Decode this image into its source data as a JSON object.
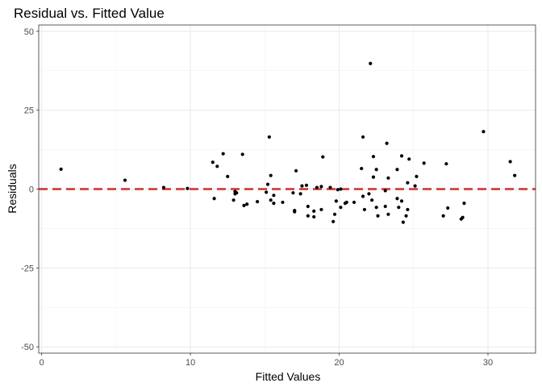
{
  "chart_data": {
    "type": "scatter",
    "title": "Residual vs. Fitted Value",
    "xlabel": "Fitted Values",
    "ylabel": "Residuals",
    "xlim": [
      -0.2,
      33.2
    ],
    "ylim": [
      -52,
      52
    ],
    "x_ticks": [
      0,
      10,
      20,
      30
    ],
    "x_tick_labels": [
      "0",
      "10",
      "20",
      "30"
    ],
    "y_ticks": [
      -50,
      -25,
      0,
      25,
      50
    ],
    "y_tick_labels": [
      "-50",
      "-25",
      "0",
      "25",
      "50"
    ],
    "grid": true,
    "point_color": "#000000",
    "reference_line": {
      "y": 0,
      "color": "#d04040",
      "style": "dashed"
    },
    "points": [
      [
        1.3,
        6.3
      ],
      [
        5.6,
        2.8
      ],
      [
        8.2,
        0.5
      ],
      [
        9.8,
        0.2
      ],
      [
        11.5,
        8.5
      ],
      [
        11.6,
        -3.0
      ],
      [
        11.8,
        7.2
      ],
      [
        12.2,
        11.2
      ],
      [
        12.5,
        4.0
      ],
      [
        12.9,
        -3.5
      ],
      [
        13.0,
        -1.5
      ],
      [
        13.0,
        -0.8
      ],
      [
        13.1,
        -1.2
      ],
      [
        13.5,
        11.0
      ],
      [
        13.6,
        -5.2
      ],
      [
        13.8,
        -4.8
      ],
      [
        14.5,
        -4.0
      ],
      [
        15.1,
        -1.0
      ],
      [
        15.2,
        1.5
      ],
      [
        15.3,
        16.5
      ],
      [
        15.4,
        -3.5
      ],
      [
        15.4,
        4.3
      ],
      [
        15.6,
        -2.0
      ],
      [
        15.6,
        -4.5
      ],
      [
        16.2,
        -4.2
      ],
      [
        16.9,
        -1.2
      ],
      [
        17.0,
        -6.8
      ],
      [
        17.0,
        -7.2
      ],
      [
        17.1,
        5.8
      ],
      [
        17.4,
        -1.5
      ],
      [
        17.5,
        1.0
      ],
      [
        17.8,
        1.2
      ],
      [
        17.9,
        -5.5
      ],
      [
        17.9,
        -8.5
      ],
      [
        18.3,
        -7.0
      ],
      [
        18.3,
        -8.8
      ],
      [
        18.5,
        0.5
      ],
      [
        18.8,
        -6.5
      ],
      [
        18.8,
        0.8
      ],
      [
        18.9,
        10.2
      ],
      [
        19.4,
        0.5
      ],
      [
        19.6,
        -10.3
      ],
      [
        19.7,
        -8.0
      ],
      [
        19.8,
        -3.8
      ],
      [
        19.9,
        -0.2
      ],
      [
        20.1,
        -5.8
      ],
      [
        20.1,
        0.0
      ],
      [
        20.4,
        -4.5
      ],
      [
        20.5,
        -4.2
      ],
      [
        21.0,
        -4.2
      ],
      [
        21.5,
        6.5
      ],
      [
        21.6,
        16.5
      ],
      [
        21.6,
        -2.3
      ],
      [
        21.7,
        -6.5
      ],
      [
        22.0,
        -1.5
      ],
      [
        22.1,
        39.8
      ],
      [
        22.2,
        -3.5
      ],
      [
        22.3,
        3.8
      ],
      [
        22.3,
        10.3
      ],
      [
        22.5,
        6.2
      ],
      [
        22.5,
        -5.8
      ],
      [
        22.6,
        -8.5
      ],
      [
        23.1,
        -0.5
      ],
      [
        23.1,
        -5.5
      ],
      [
        23.2,
        14.5
      ],
      [
        23.3,
        3.5
      ],
      [
        23.3,
        -8.0
      ],
      [
        23.9,
        -3.0
      ],
      [
        23.9,
        6.2
      ],
      [
        24.0,
        -5.8
      ],
      [
        24.2,
        10.5
      ],
      [
        24.2,
        -3.8
      ],
      [
        24.3,
        -10.5
      ],
      [
        24.5,
        -8.5
      ],
      [
        24.6,
        -6.5
      ],
      [
        24.6,
        2.0
      ],
      [
        24.7,
        9.5
      ],
      [
        25.1,
        1.0
      ],
      [
        25.2,
        4.0
      ],
      [
        25.7,
        8.2
      ],
      [
        27.0,
        -8.5
      ],
      [
        27.2,
        8.0
      ],
      [
        27.3,
        -6.0
      ],
      [
        28.2,
        -9.5
      ],
      [
        28.3,
        -9.0
      ],
      [
        28.4,
        -4.5
      ],
      [
        29.7,
        18.2
      ],
      [
        31.5,
        8.7
      ],
      [
        31.8,
        4.3
      ]
    ]
  }
}
